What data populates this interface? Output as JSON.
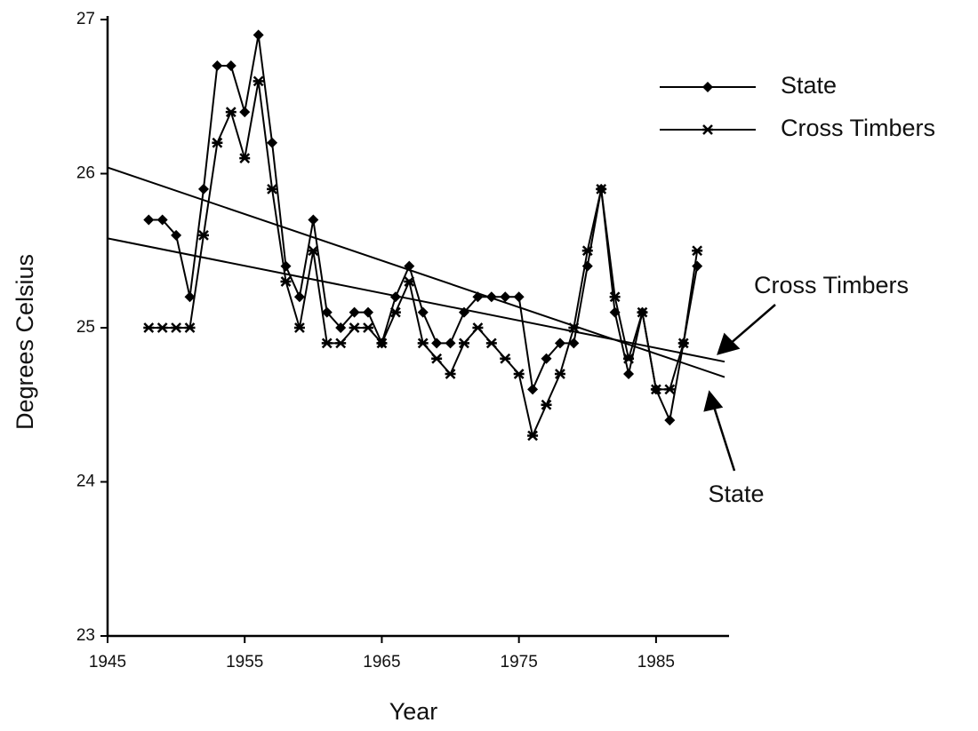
{
  "chart_data": {
    "type": "line",
    "xlabel": "Year",
    "ylabel": "Degrees Celsius",
    "x": [
      1948,
      1949,
      1950,
      1951,
      1952,
      1953,
      1954,
      1955,
      1956,
      1957,
      1958,
      1959,
      1960,
      1961,
      1962,
      1963,
      1964,
      1965,
      1966,
      1967,
      1968,
      1969,
      1970,
      1971,
      1972,
      1973,
      1974,
      1975,
      1976,
      1977,
      1978,
      1979,
      1980,
      1981,
      1982,
      1983,
      1984,
      1985,
      1986,
      1987,
      1988
    ],
    "series": [
      {
        "name": "State",
        "color": "#000000",
        "marker": "diamond",
        "values": [
          25.7,
          25.7,
          25.6,
          25.2,
          25.9,
          26.7,
          26.7,
          26.4,
          26.9,
          26.2,
          25.4,
          25.2,
          25.7,
          25.1,
          25.0,
          25.1,
          25.1,
          24.9,
          25.2,
          25.4,
          25.1,
          24.9,
          24.9,
          25.1,
          25.2,
          25.2,
          25.2,
          25.2,
          24.6,
          24.8,
          24.9,
          24.9,
          25.4,
          25.9,
          25.1,
          24.7,
          25.1,
          24.6,
          24.4,
          24.9,
          25.4
        ]
      },
      {
        "name": "Cross Timbers",
        "color": "#000000",
        "marker": "x",
        "values": [
          25.0,
          25.0,
          25.0,
          25.0,
          25.6,
          26.2,
          26.4,
          26.1,
          26.6,
          25.9,
          25.3,
          25.0,
          25.5,
          24.9,
          24.9,
          25.0,
          25.0,
          24.9,
          25.1,
          25.3,
          24.9,
          24.8,
          24.7,
          24.9,
          25.0,
          24.9,
          24.8,
          24.7,
          24.3,
          24.5,
          24.7,
          25.0,
          25.5,
          25.9,
          25.2,
          24.8,
          25.1,
          24.6,
          24.6,
          24.9,
          25.5
        ]
      }
    ],
    "trends": [
      {
        "label": "Cross Timbers",
        "x": [
          1945,
          1990
        ],
        "values": [
          25.58,
          24.78
        ]
      },
      {
        "label": "State",
        "x": [
          1945,
          1990
        ],
        "values": [
          26.04,
          24.68
        ]
      }
    ],
    "xlim": [
      1945,
      1990
    ],
    "ylim": [
      23,
      27
    ],
    "xticks": [
      1945,
      1955,
      1965,
      1975,
      1985
    ],
    "yticks": [
      23,
      24,
      25,
      26,
      27
    ],
    "legend": "upper right",
    "grid": false
  }
}
